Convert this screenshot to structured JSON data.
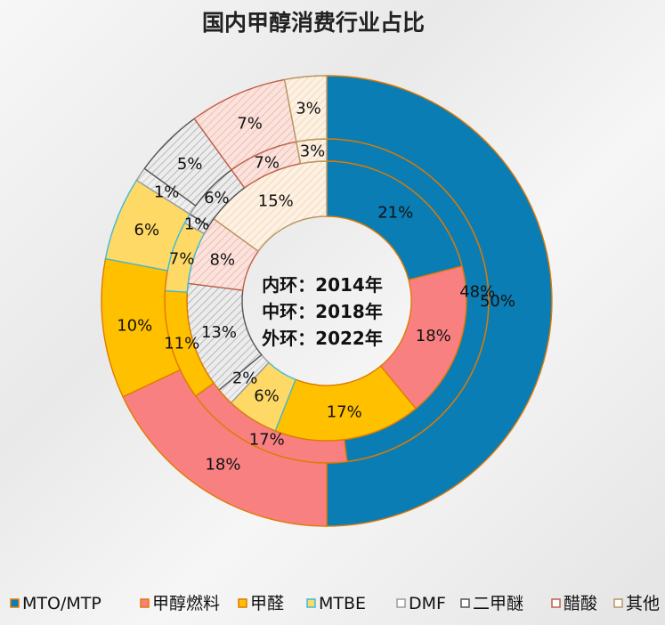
{
  "chart_data": {
    "type": "pie",
    "subtype": "multi-ring donut",
    "title": "国内甲醇消费行业占比",
    "center_labels": [
      "内环：2014年",
      "中环：2018年",
      "外环：2022年"
    ],
    "categories": [
      "MTO/MTP",
      "甲醇燃料",
      "甲醛",
      "MTBE",
      "DMF",
      "二甲醚",
      "醋酸",
      "其他"
    ],
    "colors": [
      "#0a7db5",
      "#f98080",
      "#ffc000",
      "#ffd966",
      "#dedede",
      "#e3e3e3",
      "#f8d0c8",
      "#fbe6cf"
    ],
    "borders": [
      "#e07a00",
      "#e07a00",
      "#e07a00",
      "#3bbcd8",
      "#9a9a9a",
      "#555555",
      "#c0604a",
      "#b89660"
    ],
    "series": [
      {
        "name": "2014年",
        "ring": "inner",
        "values": [
          21,
          18,
          17,
          6,
          2,
          13,
          8,
          15
        ],
        "labels": [
          "21%",
          "18%",
          "17%",
          "6%",
          "2%",
          "13%",
          "8%",
          "15%"
        ]
      },
      {
        "name": "2018年",
        "ring": "middle",
        "values": [
          48,
          17,
          11,
          7,
          1,
          6,
          7,
          3
        ],
        "labels": [
          "48%",
          "17%",
          "11%",
          "7%",
          "1%",
          "6%",
          "7%",
          "3%"
        ]
      },
      {
        "name": "2022年",
        "ring": "outer",
        "values": [
          50,
          18,
          10,
          6,
          1,
          5,
          7,
          3
        ],
        "labels": [
          "50%",
          "18%",
          "10%",
          "6%",
          "1%",
          "5%",
          "7%",
          "3%"
        ]
      }
    ],
    "legend_position": "bottom"
  }
}
